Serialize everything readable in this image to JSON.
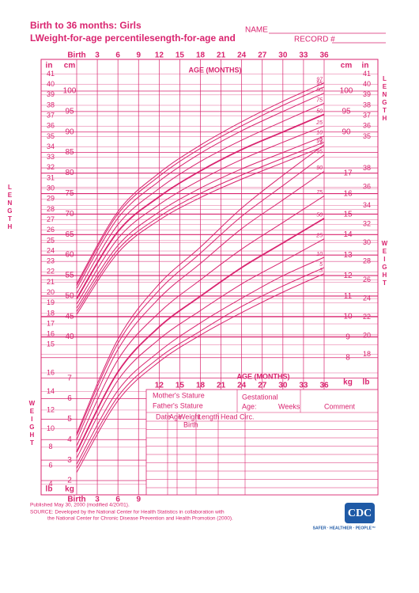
{
  "header": {
    "title": "Birth to 36 months: Girls",
    "subtitle": "LWeight-for-age percentilesength-for-age and",
    "name_label": "NAME",
    "record_label": "RECORD #"
  },
  "chart_data": {
    "type": "line",
    "color": "#d9246f",
    "age_title": "AGE (MONTHS)",
    "x": [
      0,
      6,
      12,
      18,
      24,
      30,
      36
    ],
    "xlim": [
      0,
      36
    ],
    "xticks": [
      {
        "value": 0,
        "label": "Birth"
      },
      3,
      6,
      9,
      12,
      15,
      18,
      21,
      24,
      27,
      30,
      33,
      36
    ],
    "ylim": [
      40,
      105
    ],
    "yticks": [
      40,
      45,
      50,
      55,
      60,
      65,
      70,
      75,
      80,
      85,
      90,
      95,
      100
    ],
    "y2lim": [
      2,
      19
    ],
    "y2ticks": [
      2,
      3,
      4,
      5,
      6,
      7,
      8,
      9,
      10,
      11,
      12,
      13,
      14,
      15,
      16,
      17
    ],
    "inch_ticks": [
      15,
      16,
      17,
      18,
      19,
      20,
      21,
      22,
      23,
      24,
      25,
      26,
      27,
      28,
      29,
      30,
      31,
      32,
      33,
      34,
      35,
      36,
      37,
      38,
      39,
      40,
      41
    ],
    "lb_ticks": [
      4,
      6,
      8,
      10,
      12,
      14,
      16,
      18,
      20,
      22,
      24,
      26,
      28,
      30,
      32,
      34,
      36,
      38
    ],
    "units": {
      "cm": "cm",
      "in": "in",
      "kg": "kg",
      "lb": "lb"
    },
    "length_label": "LENGTH",
    "weight_label": "WEIGHT",
    "grid": true,
    "series": [
      {
        "name": "97",
        "values": [
          53,
          70.6,
          80,
          86.8,
          92.5,
          97.5,
          102
        ]
      },
      {
        "name": "95",
        "values": [
          52.5,
          70,
          79.2,
          86,
          91.5,
          96.5,
          101
        ]
      },
      {
        "name": "90",
        "values": [
          51.8,
          69,
          78,
          84.8,
          90.3,
          95,
          99.5
        ]
      },
      {
        "name": "75",
        "values": [
          50.6,
          67.4,
          76.2,
          82.8,
          88,
          92.6,
          97
        ]
      },
      {
        "name": "50",
        "values": [
          49.3,
          65.7,
          74.2,
          80.5,
          85.7,
          90,
          94.3
        ]
      },
      {
        "name": "25",
        "values": [
          48,
          64,
          72.3,
          78.3,
          83.3,
          87.5,
          91.5
        ]
      },
      {
        "name": "10",
        "values": [
          47,
          62.3,
          70.5,
          76.3,
          81,
          85,
          89
        ]
      },
      {
        "name": "5",
        "values": [
          46.2,
          61.3,
          69.3,
          75,
          79.5,
          83.6,
          87.5
        ]
      },
      {
        "name": "3",
        "values": [
          45.5,
          60.5,
          68.5,
          74,
          78.5,
          82.5,
          86.5
        ]
      },
      {
        "name": "97",
        "axis": "y2",
        "values": [
          4.3,
          8.9,
          11.6,
          13.4,
          15.3,
          16.9,
          18.4
        ]
      },
      {
        "name": "95",
        "axis": "y2",
        "values": [
          4.2,
          8.7,
          11.3,
          13.1,
          14.9,
          16.4,
          17.9
        ]
      },
      {
        "name": "90",
        "axis": "y2",
        "values": [
          4,
          8.4,
          10.9,
          12.6,
          14.3,
          15.7,
          17.1
        ]
      },
      {
        "name": "75",
        "axis": "y2",
        "values": [
          3.7,
          7.9,
          10.2,
          11.8,
          13.3,
          14.6,
          15.9
        ]
      },
      {
        "name": "50",
        "axis": "y2",
        "values": [
          3.4,
          7.3,
          9.5,
          11,
          12.4,
          13.6,
          14.8
        ]
      },
      {
        "name": "25",
        "axis": "y2",
        "values": [
          3.1,
          6.9,
          8.9,
          10.3,
          11.6,
          12.7,
          13.8
        ]
      },
      {
        "name": "10",
        "axis": "y2",
        "values": [
          2.8,
          6.4,
          8.3,
          9.7,
          10.9,
          12,
          12.9
        ]
      },
      {
        "name": "5",
        "axis": "y2",
        "values": [
          2.6,
          6.1,
          8,
          9.3,
          10.5,
          11.5,
          12.4
        ]
      },
      {
        "name": "3",
        "axis": "y2",
        "values": [
          2.4,
          5.9,
          7.8,
          9.1,
          10.2,
          11.2,
          12.1
        ]
      }
    ]
  },
  "table": {
    "mother": "Mother's Stature",
    "father": "Father's Stature",
    "gestational": "Gestational",
    "age": "Age:",
    "weeks": "Weeks",
    "comment": "Comment",
    "columns": [
      "Date",
      "Age",
      "Weight",
      "Length",
      "Head Circ."
    ],
    "first_row": "Birth"
  },
  "footer": {
    "published": "Published May 30, 2000 (modified 4/20/01).",
    "source": "SOURCE: Developed by the National Center for Health Statistics in collaboration with",
    "source2": "the National Center for Chronic Disease Prevention and Health Promotion (2000).",
    "logo": "CDC",
    "tagline": "SAFER · HEALTHIER · PEOPLE™"
  }
}
